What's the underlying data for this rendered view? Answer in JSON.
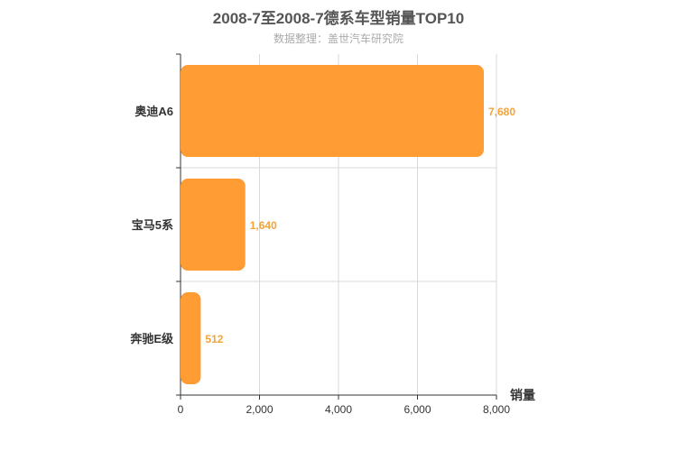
{
  "title": "2008-7至2008-7德系车型销量TOP10",
  "subtitle": "数据整理：盖世汽车研究院",
  "colors": {
    "bar": "#ff9c33",
    "data_label": "#f2a33a",
    "grid": "#d9d9d9",
    "axis": "#333333"
  },
  "chart_data": {
    "type": "bar",
    "orientation": "horizontal",
    "categories": [
      "奥迪A6",
      "宝马5系",
      "奔驰E级"
    ],
    "values": [
      7680,
      1640,
      512
    ],
    "data_labels": [
      "7,680",
      "1,640",
      "512"
    ],
    "xlabel": "销量",
    "ylabel": "",
    "xlim": [
      0,
      8000
    ],
    "xticks": [
      0,
      2000,
      4000,
      6000,
      8000
    ],
    "xtick_labels": [
      "0",
      "2,000",
      "4,000",
      "6,000",
      "8,000"
    ],
    "grid": true,
    "legend": "none"
  }
}
